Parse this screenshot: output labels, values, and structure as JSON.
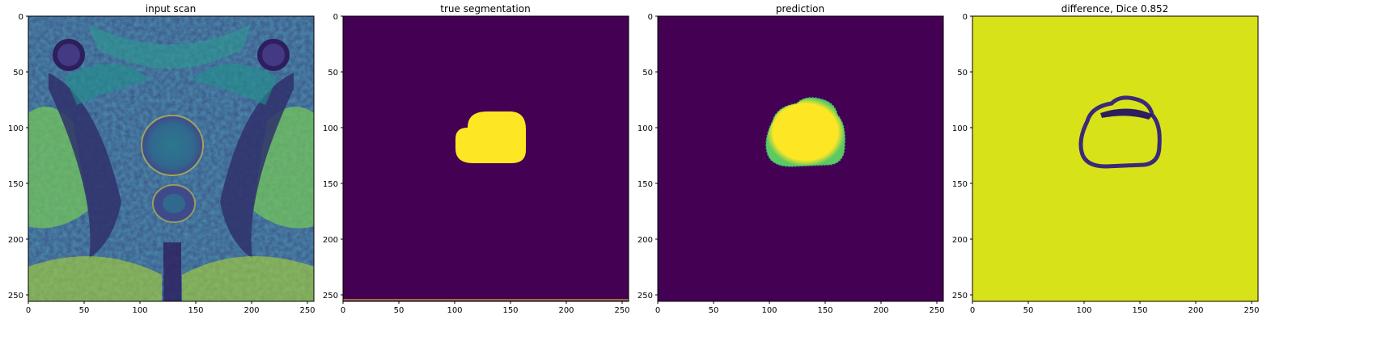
{
  "figure": {
    "panels": [
      {
        "title": "input scan",
        "kind": "mri-scan",
        "colormap": "viridis",
        "xticks": [
          "0",
          "50",
          "100",
          "150",
          "200",
          "250"
        ],
        "yticks": [
          "0",
          "50",
          "100",
          "150",
          "200",
          "250"
        ]
      },
      {
        "title": "true segmentation",
        "kind": "mask",
        "colormap": "viridis",
        "background_color": "#440154",
        "mask_color": "#fde725",
        "xticks": [
          "0",
          "50",
          "100",
          "150",
          "200",
          "250"
        ],
        "yticks": [
          "0",
          "50",
          "100",
          "150",
          "200",
          "250"
        ]
      },
      {
        "title": "prediction",
        "kind": "mask",
        "colormap": "viridis",
        "background_color": "#440154",
        "mask_color": "#fde725",
        "xticks": [
          "0",
          "50",
          "100",
          "150",
          "200",
          "250"
        ],
        "yticks": [
          "0",
          "50",
          "100",
          "150",
          "200",
          "250"
        ]
      },
      {
        "title": "difference, Dice 0.852",
        "kind": "difference",
        "colormap": "viridis",
        "background_color": "#d8e219",
        "ring_color": "#3b2a78",
        "xticks": [
          "0",
          "50",
          "100",
          "150",
          "200",
          "250"
        ],
        "yticks": [
          "0",
          "50",
          "100",
          "150",
          "200",
          "250"
        ]
      }
    ]
  }
}
